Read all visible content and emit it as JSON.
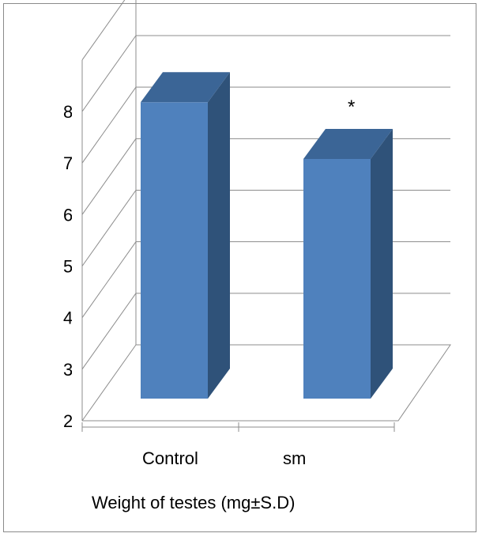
{
  "chart_data": {
    "type": "bar",
    "title": "",
    "xlabel": "Weight of testes (mg±S.D)",
    "ylabel": "",
    "categories": [
      "Control",
      "sm"
    ],
    "values": [
      7.75,
      6.65
    ],
    "ylim": [
      2,
      8
    ],
    "y_ticks": [
      "2",
      "3",
      "4",
      "5",
      "6",
      "7",
      "8"
    ],
    "annotations": [
      {
        "category": "sm",
        "text": "*"
      }
    ],
    "bar_color": "#4f81bd",
    "bar_side_color": "#2f5279",
    "bar_top_color": "#3b6596",
    "grid": true,
    "style": "3d"
  }
}
